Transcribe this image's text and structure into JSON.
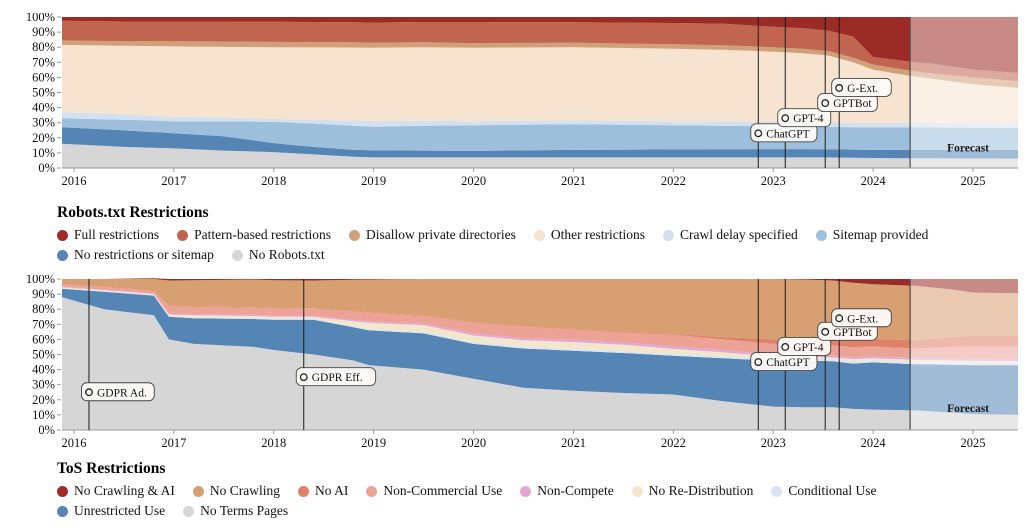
{
  "chart_data": [
    {
      "id": "robots",
      "type": "area",
      "stacked": true,
      "unit": "percent",
      "legend_title": "Robots.txt Restrictions",
      "ylim": [
        0,
        100
      ],
      "y_ticks": [
        "0%",
        "10%",
        "20%",
        "30%",
        "40%",
        "50%",
        "60%",
        "70%",
        "80%",
        "90%",
        "100%"
      ],
      "x_ticks": [
        2016,
        2017,
        2018,
        2019,
        2020,
        2021,
        2022,
        2023,
        2024,
        2025
      ],
      "x_domain": [
        2015.88,
        2025.45
      ],
      "grid": false,
      "legend_position": "below",
      "x": [
        2015.88,
        2016.5,
        2017,
        2017.5,
        2018,
        2018.4,
        2018.8,
        2019,
        2019.5,
        2020,
        2021,
        2022,
        2022.5,
        2023,
        2023.3,
        2023.55,
        2023.8,
        2024,
        2024.42,
        2024.6,
        2025,
        2025.45
      ],
      "series": [
        {
          "name": "No Robots.txt",
          "color": "#d6d6d6",
          "values": [
            16,
            14,
            13,
            11.5,
            10.5,
            9,
            7.5,
            7,
            7,
            7,
            7,
            7,
            7,
            7,
            7,
            7,
            6.8,
            6.6,
            6.5,
            6.4,
            6.3,
            6.2
          ]
        },
        {
          "name": "No restrictions or sitemap",
          "color": "#5585b5",
          "values": [
            11,
            11,
            10,
            9.5,
            6,
            5,
            4.5,
            4.7,
            4.5,
            4.3,
            5,
            5.3,
            5.4,
            5.5,
            5.5,
            5.4,
            5.4,
            5.4,
            5.5,
            5.6,
            5.7,
            5.8
          ]
        },
        {
          "name": "Sitemap provided",
          "color": "#9dbfdc",
          "values": [
            6,
            7,
            8,
            10,
            14,
            15.5,
            16,
            15.6,
            16.5,
            17,
            17,
            16,
            15.6,
            15,
            15,
            14.8,
            14.8,
            15,
            15,
            14.8,
            14.6,
            14.5
          ]
        },
        {
          "name": "Crawl delay specified",
          "color": "#d3e1ef",
          "values": [
            4,
            3.5,
            3,
            2.5,
            2,
            2.5,
            3.5,
            3.7,
            3.3,
            2.7,
            2.5,
            2.7,
            2.8,
            3,
            2.9,
            3,
            3,
            3,
            3,
            3.1,
            3.2,
            3.2
          ]
        },
        {
          "name": "Other restrictions",
          "color": "#f6e3d0",
          "values": [
            44.5,
            45.5,
            46.5,
            46.7,
            47.5,
            47.9,
            48.3,
            48.7,
            48.7,
            48.7,
            48.5,
            48,
            47.5,
            46.5,
            45.6,
            44.3,
            40,
            35,
            30.5,
            29.1,
            25.7,
            23.3
          ]
        },
        {
          "name": "Disallow private directories",
          "color": "#d0a078",
          "values": [
            3,
            3,
            3.5,
            3.6,
            3.5,
            3.5,
            3.5,
            3.3,
            3.3,
            3,
            3,
            3,
            3,
            3,
            3,
            3,
            3,
            3.5,
            3.5,
            3.5,
            4.5,
            4.5
          ]
        },
        {
          "name": "Pattern-based restrictions",
          "color": "#c16450",
          "values": [
            13,
            13,
            13,
            13.2,
            13.3,
            13.3,
            13.2,
            13.3,
            13.4,
            14,
            13.5,
            14,
            14.2,
            13.5,
            13.5,
            13.5,
            14,
            5,
            6,
            6.5,
            5,
            5.5
          ]
        },
        {
          "name": "Full restrictions",
          "color": "#9b2b25",
          "values": [
            2.5,
            3,
            3,
            3,
            3.2,
            3.3,
            3.5,
            3.7,
            3.3,
            3.3,
            3.5,
            4,
            4.5,
            6.5,
            7.5,
            9,
            13,
            26.5,
            30,
            31,
            35,
            37
          ]
        }
      ],
      "events": [
        {
          "label": "ChatGPT",
          "x": 2022.85,
          "y": 23
        },
        {
          "label": "GPT-4",
          "x": 2023.12,
          "y": 33
        },
        {
          "label": "GPTBot",
          "x": 2023.52,
          "y": 43
        },
        {
          "label": "G-Ext.",
          "x": 2023.66,
          "y": 53
        }
      ],
      "forecast": {
        "x": 2024.37,
        "label": "Forecast",
        "label_x": 2024.95,
        "label_y": 11
      }
    },
    {
      "id": "tos",
      "type": "area",
      "stacked": true,
      "unit": "percent",
      "legend_title": "ToS Restrictions",
      "ylim": [
        0,
        100
      ],
      "y_ticks": [
        "0%",
        "10%",
        "20%",
        "30%",
        "40%",
        "50%",
        "60%",
        "70%",
        "80%",
        "90%",
        "100%"
      ],
      "x_ticks": [
        2016,
        2017,
        2018,
        2019,
        2020,
        2021,
        2022,
        2023,
        2024,
        2025
      ],
      "x_domain": [
        2015.88,
        2025.45
      ],
      "grid": false,
      "legend_position": "below",
      "x": [
        2015.88,
        2016.3,
        2016.8,
        2016.95,
        2017.2,
        2017.8,
        2018,
        2018.4,
        2018.8,
        2018.95,
        2019.5,
        2020,
        2020.5,
        2021,
        2021.5,
        2022,
        2022.5,
        2023,
        2023.3,
        2023.6,
        2023.8,
        2024,
        2024.42,
        2024.8,
        2025,
        2025.45
      ],
      "series": [
        {
          "name": "No Terms Pages",
          "color": "#d6d6d6",
          "values": [
            88,
            80,
            76,
            60,
            57,
            55,
            53,
            50,
            46,
            43,
            40,
            34,
            28,
            26,
            24.5,
            23.5,
            19,
            15.5,
            15,
            15,
            14,
            13.5,
            13,
            11.5,
            10.5,
            10
          ]
        },
        {
          "name": "Unrestricted Use",
          "color": "#5585b5",
          "values": [
            5.5,
            11.5,
            13,
            15,
            17,
            18.5,
            20,
            23,
            22,
            23,
            24,
            23,
            26,
            26.5,
            26.5,
            25.7,
            28.5,
            30.4,
            31,
            30.5,
            30,
            31.3,
            30.6,
            31.7,
            32.5,
            33
          ]
        },
        {
          "name": "Conditional Use",
          "color": "#dbe5f1",
          "values": [
            0.5,
            0.5,
            0.5,
            0.5,
            0.5,
            0.5,
            0.5,
            0.5,
            0.8,
            1,
            1,
            1,
            1.2,
            1.2,
            1.2,
            1.2,
            1.3,
            1.3,
            1.3,
            1.3,
            1.3,
            1.3,
            1.4,
            1.5,
            1.5,
            1.5
          ]
        },
        {
          "name": "No Re-Distribution",
          "color": "#f2e6cc",
          "values": [
            0.5,
            0.5,
            0.5,
            1,
            1.5,
            1.5,
            1.5,
            1.5,
            3.2,
            4,
            4.5,
            4.6,
            4.3,
            4.5,
            4.3,
            3.3,
            2.7,
            1.3,
            1.2,
            1.2,
            1.7,
            1.4,
            1.5,
            1.3,
            1.3,
            1
          ]
        },
        {
          "name": "Non-Compete",
          "color": "#e3a6d5",
          "values": [
            0.5,
            0.5,
            0.5,
            0.7,
            0.8,
            0.8,
            0.8,
            0.8,
            1,
            1,
            1,
            1.6,
            1.3,
            1.7,
            1.5,
            1.8,
            1.5,
            1.3,
            1.3,
            1.3,
            1.3,
            1.3,
            1.3,
            1.4,
            1.4,
            1.5
          ]
        },
        {
          "name": "Non-Commercial Use",
          "color": "#eca295",
          "values": [
            1.5,
            1.5,
            1.5,
            4.8,
            4.7,
            4.7,
            4.7,
            4.5,
            5.5,
            5.7,
            5,
            6.8,
            7.7,
            6.6,
            6.5,
            7.6,
            7,
            7.2,
            6.7,
            6.7,
            6.5,
            6.5,
            6.2,
            7.6,
            8.3,
            8
          ]
        },
        {
          "name": "No AI",
          "color": "#df8069",
          "values": [
            0.3,
            0.3,
            0.3,
            0.3,
            0.3,
            0.3,
            0.3,
            0.3,
            0.3,
            0.3,
            0.3,
            0.3,
            0.3,
            0.3,
            0.5,
            0.5,
            1.5,
            3,
            3.5,
            4,
            4.5,
            5,
            5.5,
            6.5,
            7,
            7.5
          ]
        },
        {
          "name": "No Crawling",
          "color": "#d89f72",
          "values": [
            3.2,
            5.2,
            7.7,
            16.7,
            17.4,
            18.4,
            18.4,
            18.4,
            20.7,
            21.7,
            24.2,
            28.7,
            31.2,
            33.2,
            35,
            36.4,
            38.5,
            40,
            39.7,
            39,
            38.2,
            36.2,
            36,
            31.5,
            28.5,
            28
          ]
        },
        {
          "name": "No Crawling & AI",
          "color": "#9b2b25",
          "values": [
            0,
            0,
            0.5,
            1,
            0.8,
            0.3,
            0.8,
            1,
            0.5,
            0.3,
            0,
            0,
            0,
            0,
            0,
            0,
            0,
            0,
            0.3,
            1,
            2.5,
            3.5,
            4.5,
            7,
            9,
            9.5
          ]
        }
      ],
      "events": [
        {
          "label": "GDPR Ad.",
          "x": 2016.15,
          "y": 25
        },
        {
          "label": "GDPR Eff.",
          "x": 2018.3,
          "y": 35
        },
        {
          "label": "ChatGPT",
          "x": 2022.85,
          "y": 45
        },
        {
          "label": "GPT-4",
          "x": 2023.12,
          "y": 55
        },
        {
          "label": "GPTBot",
          "x": 2023.52,
          "y": 65
        },
        {
          "label": "G-Ext.",
          "x": 2023.66,
          "y": 74
        }
      ],
      "forecast": {
        "x": 2024.37,
        "label": "Forecast",
        "label_x": 2024.95,
        "label_y": 12
      }
    }
  ]
}
